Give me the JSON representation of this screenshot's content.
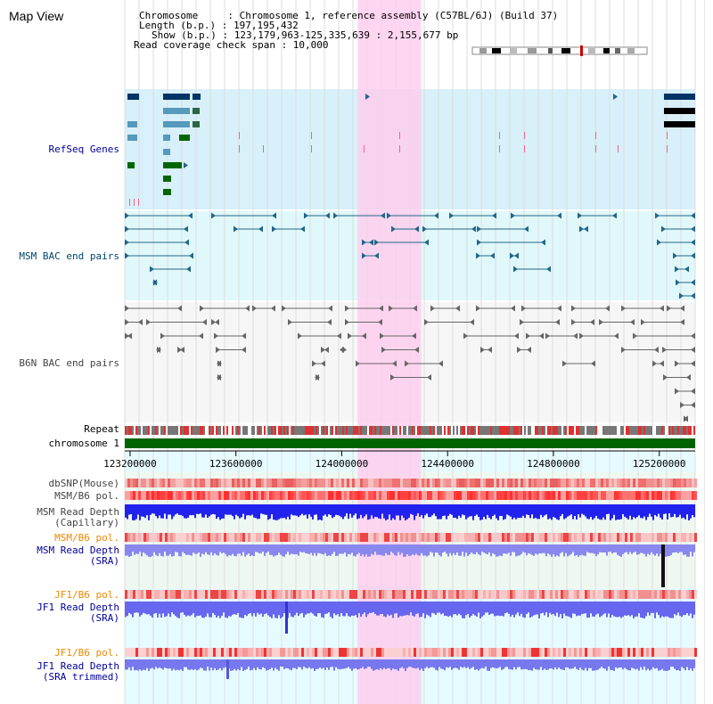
{
  "header": {
    "title": "Map View",
    "info_lines": [
      "Chromosome     : Chromosome 1, reference assembly (C57BL/6J) (Build 37)",
      "Length (b.p.) : 197,195,432",
      "Show (b.p.) : 123,179,963-125,335,639 : 2,155,677 bp",
      "Read coverage check span : 10,000"
    ]
  },
  "tracks": {
    "refseq": "RefSeq Genes",
    "msm_bac": "MSM BAC end pairs",
    "b6n_bac": "B6N BAC end pairs",
    "repeat": "Repeat",
    "chromosome": "chromosome 1",
    "dbsnp": "dbSNP(Mouse)",
    "msm_b6_pol_1": "MSM/B6 pol.",
    "msm_depth_cap_1": "MSM Read Depth",
    "msm_depth_cap_2": "(Capillary)",
    "msm_b6_pol_2": "MSM/B6 pol.",
    "msm_depth_sra_1": "MSM Read Depth",
    "msm_depth_sra_2": "(SRA)",
    "jf1_b6_pol_1": "JF1/B6 pol.",
    "jf1_depth_sra_1": "JF1 Read Depth",
    "jf1_depth_sra_2": "(SRA)",
    "jf1_b6_pol_2": "JF1/B6 pol.",
    "jf1_depth_trim_1": "JF1 Read Depth",
    "jf1_depth_trim_2": "(SRA trimmed)"
  },
  "axis": {
    "range": [
      123179963,
      125335639
    ],
    "ticks": [
      "123200000",
      "123600000",
      "124000000",
      "124400000",
      "124800000",
      "125200000"
    ]
  },
  "highlight_range": [
    124060000,
    124300000
  ],
  "colors": {
    "refseq_bg": "#d8f0fa",
    "msm_bg": "#e0f8fa",
    "b6n_bg": "#f6f6f6",
    "chromosome": "#006400",
    "highlight": "#ffccee",
    "label_blue": "#000099",
    "label_orange": "#ee8800",
    "label_gray": "#444444",
    "msm_label": "#004466"
  }
}
